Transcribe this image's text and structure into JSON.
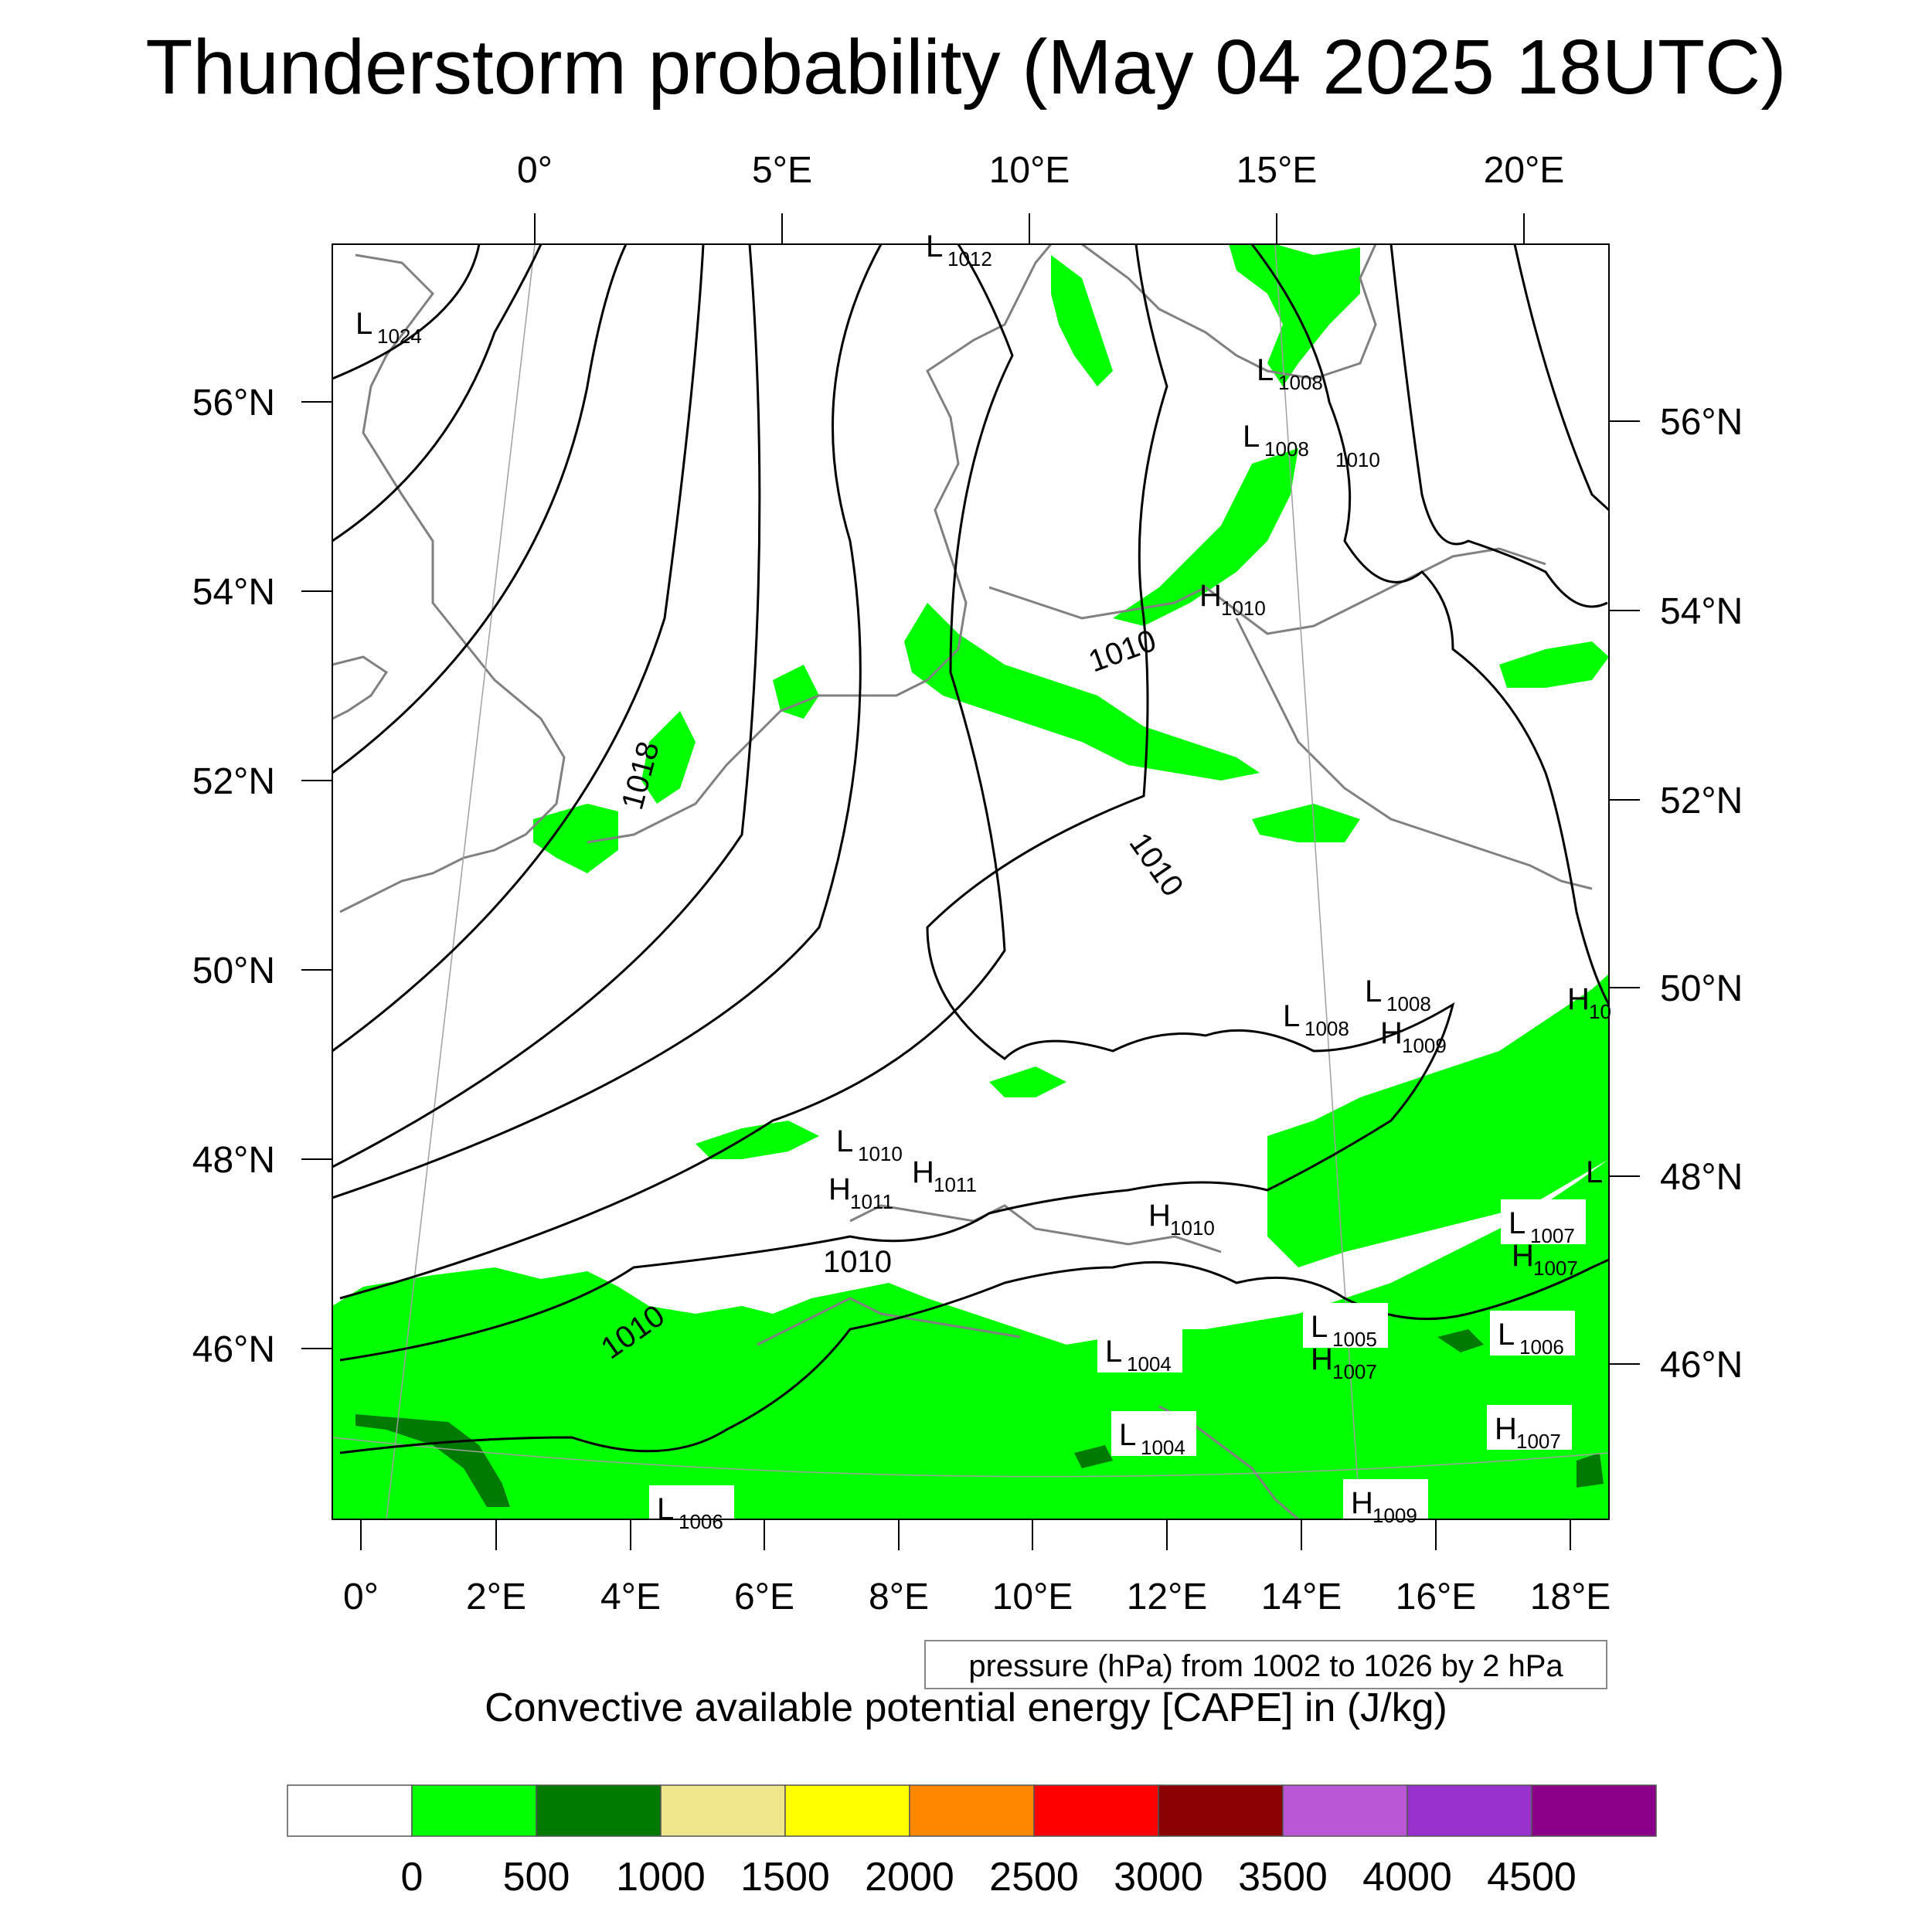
{
  "title": "Thunderstorm probability (May 04 2025 18UTC)",
  "note": "pressure (hPa) from 1002 to 1026 by 2 hPa",
  "colorbar": {
    "title": "Convective available potential energy [CAPE] in (J/kg)",
    "colors": [
      "#ffffff",
      "#00ff00",
      "#007a00",
      "#efe68c",
      "#ffff00",
      "#ff8800",
      "#ff0000",
      "#8b0000",
      "#b957d6",
      "#9932cc",
      "#8b008b"
    ],
    "labels": [
      "0",
      "500",
      "1000",
      "1500",
      "2000",
      "2500",
      "3000",
      "3500",
      "4000",
      "4500"
    ]
  },
  "axes": {
    "top_lon_labels": [
      "0°",
      "5°E",
      "10°E",
      "15°E",
      "20°E"
    ],
    "bottom_lon_labels": [
      "0°",
      "2°E",
      "4°E",
      "6°E",
      "8°E",
      "10°E",
      "12°E",
      "14°E",
      "16°E",
      "18°E"
    ],
    "left_lat_labels": [
      "56°N",
      "54°N",
      "52°N",
      "50°N",
      "48°N",
      "46°N"
    ],
    "right_lat_labels": [
      "56°N",
      "54°N",
      "52°N",
      "50°N",
      "48°N",
      "46°N"
    ]
  },
  "contour_labels": [
    "1018",
    "1010",
    "1010",
    "1010",
    "1010"
  ],
  "pressure_centers": [
    {
      "type": "L",
      "value": "1024"
    },
    {
      "type": "L",
      "value": "1012"
    },
    {
      "type": "L",
      "value": "1008"
    },
    {
      "type": "L",
      "value": "1008"
    },
    {
      "type": "",
      "value": "1010"
    },
    {
      "type": "H",
      "value": "1010"
    },
    {
      "type": "L",
      "value": "1008"
    },
    {
      "type": "L",
      "value": "1008"
    },
    {
      "type": "H",
      "value": "1009"
    },
    {
      "type": "L",
      "value": "1010"
    },
    {
      "type": "H",
      "value": "1011"
    },
    {
      "type": "H",
      "value": "1011"
    },
    {
      "type": "H",
      "value": "1010"
    },
    {
      "type": "L",
      "value": "1007"
    },
    {
      "type": "H",
      "value": "1007"
    },
    {
      "type": "L",
      "value": "1004"
    },
    {
      "type": "L",
      "value": "1005"
    },
    {
      "type": "H",
      "value": "1007"
    },
    {
      "type": "L",
      "value": "1006"
    },
    {
      "type": "L",
      "value": "1004"
    },
    {
      "type": "H",
      "value": "1007"
    },
    {
      "type": "H",
      "value": "1009"
    },
    {
      "type": "L",
      "value": "1006"
    },
    {
      "type": "H",
      "value": "10"
    },
    {
      "type": "L",
      "value": ""
    }
  ]
}
